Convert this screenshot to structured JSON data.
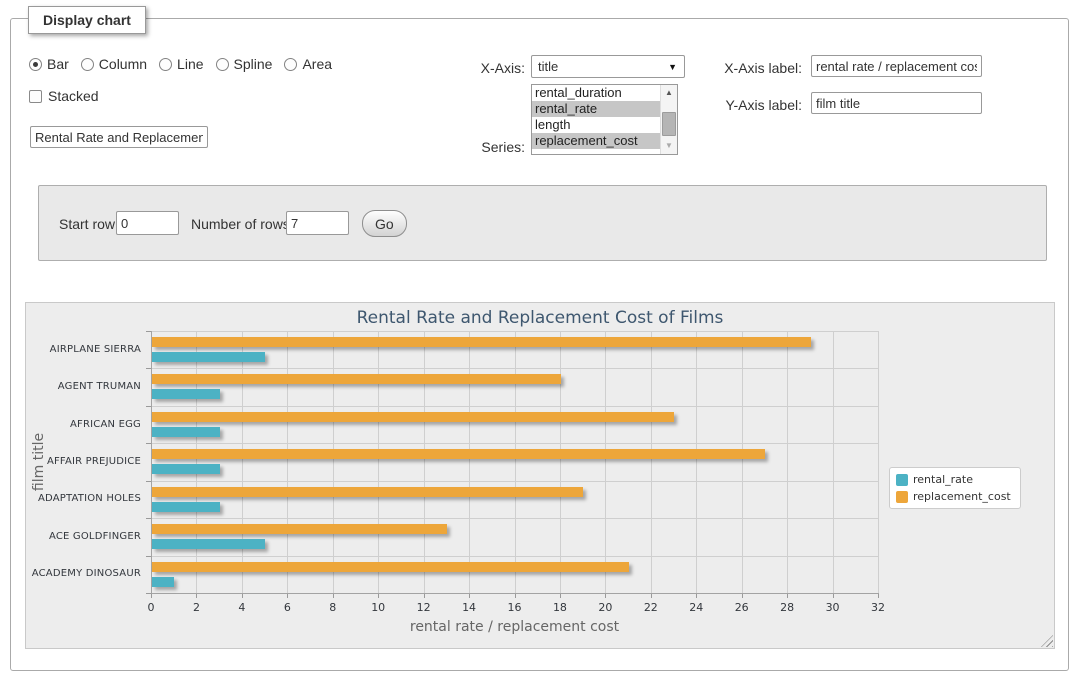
{
  "panel": {
    "legend": "Display chart"
  },
  "chart_type": {
    "options": [
      "Bar",
      "Column",
      "Line",
      "Spline",
      "Area"
    ],
    "selected": "Bar"
  },
  "stacked": {
    "label": "Stacked",
    "checked": false
  },
  "title_input": {
    "value": "Rental Rate and Replacement Cost of Films"
  },
  "x_axis": {
    "label": "X-Axis:",
    "selected": "title"
  },
  "series_select": {
    "label": "Series:",
    "options": [
      {
        "label": "rental_duration",
        "selected": false
      },
      {
        "label": "rental_rate",
        "selected": true
      },
      {
        "label": "length",
        "selected": false
      },
      {
        "label": "replacement_cost",
        "selected": true
      }
    ]
  },
  "x_axis_label": {
    "label": "X-Axis label:",
    "value": "rental rate / replacement cost"
  },
  "y_axis_label": {
    "label": "Y-Axis label:",
    "value": "film title"
  },
  "row_controls": {
    "start_row_label": "Start row:",
    "start_row_value": "0",
    "num_rows_label": "Number of rows:",
    "num_rows_value": "7",
    "go_label": "Go"
  },
  "chart_data": {
    "type": "bar",
    "title": "Rental Rate and Replacement Cost of Films",
    "xlabel": "rental rate / replacement cost",
    "ylabel": "film title",
    "categories": [
      "AIRPLANE SIERRA",
      "AGENT TRUMAN",
      "AFRICAN EGG",
      "AFFAIR PREJUDICE",
      "ADAPTATION HOLES",
      "ACE GOLDFINGER",
      "ACADEMY DINOSAUR"
    ],
    "series": [
      {
        "name": "rental_rate",
        "color": "#4CB2C4",
        "values": [
          4.99,
          2.99,
          2.99,
          2.99,
          2.99,
          4.99,
          0.99
        ]
      },
      {
        "name": "replacement_cost",
        "color": "#EDA63A",
        "values": [
          28.99,
          17.99,
          22.99,
          26.99,
          18.99,
          12.99,
          20.99
        ]
      }
    ],
    "xlim": [
      0,
      32
    ],
    "xticks": [
      0,
      2,
      4,
      6,
      8,
      10,
      12,
      14,
      16,
      18,
      20,
      22,
      24,
      26,
      28,
      30,
      32
    ],
    "grid": true,
    "legend_position": "right"
  }
}
